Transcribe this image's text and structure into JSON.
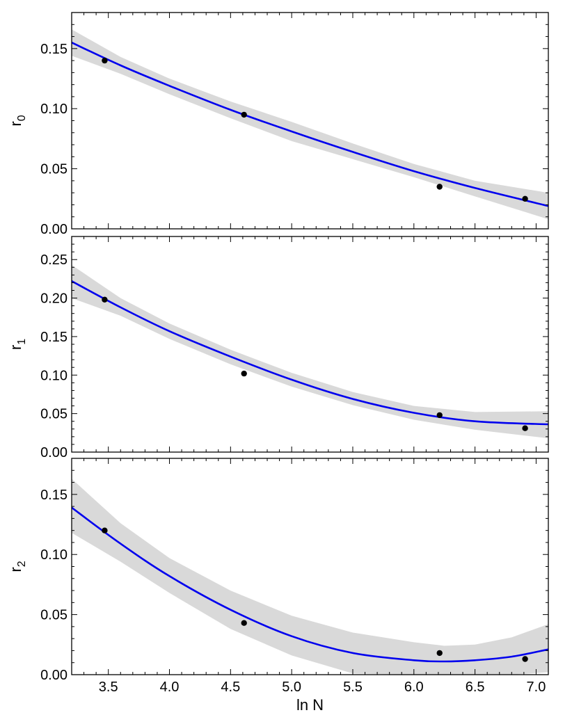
{
  "chart_data": [
    {
      "type": "scatter",
      "ylabel": "r",
      "ylabel_sub": "0",
      "xlim": [
        3.2,
        7.1
      ],
      "ylim": [
        0.0,
        0.18
      ],
      "yticks": [
        "0.00",
        "0.05",
        "0.10",
        "0.15"
      ],
      "points": {
        "x": [
          3.47,
          4.61,
          6.21,
          6.91
        ],
        "y": [
          0.14,
          0.095,
          0.035,
          0.025
        ]
      },
      "fit": {
        "x": [
          3.2,
          3.6,
          4.0,
          4.5,
          5.0,
          5.5,
          6.0,
          6.5,
          7.1
        ],
        "y": [
          0.155,
          0.136,
          0.119,
          0.099,
          0.081,
          0.064,
          0.048,
          0.034,
          0.019
        ],
        "color": "#0000ee"
      },
      "band": {
        "x": [
          3.2,
          3.6,
          4.0,
          4.5,
          5.0,
          5.5,
          6.0,
          6.5,
          7.1
        ],
        "lower": [
          0.144,
          0.129,
          0.112,
          0.092,
          0.073,
          0.058,
          0.043,
          0.027,
          0.008
        ],
        "upper": [
          0.166,
          0.143,
          0.125,
          0.106,
          0.089,
          0.071,
          0.054,
          0.04,
          0.03
        ],
        "color": "#d9d9d9"
      }
    },
    {
      "type": "scatter",
      "ylabel": "r",
      "ylabel_sub": "1",
      "xlim": [
        3.2,
        7.1
      ],
      "ylim": [
        0.0,
        0.28
      ],
      "yticks": [
        "0.00",
        "0.05",
        "0.10",
        "0.15",
        "0.20",
        "0.25"
      ],
      "points": {
        "x": [
          3.47,
          4.61,
          6.21,
          6.91
        ],
        "y": [
          0.198,
          0.102,
          0.048,
          0.031
        ]
      },
      "fit": {
        "x": [
          3.2,
          3.6,
          4.0,
          4.5,
          5.0,
          5.5,
          6.0,
          6.5,
          7.1
        ],
        "y": [
          0.222,
          0.188,
          0.157,
          0.124,
          0.094,
          0.069,
          0.051,
          0.04,
          0.036
        ],
        "color": "#0000ee"
      },
      "band": {
        "x": [
          3.2,
          3.6,
          4.0,
          4.5,
          5.0,
          5.5,
          6.0,
          6.5,
          7.1
        ],
        "lower": [
          0.2,
          0.177,
          0.147,
          0.114,
          0.085,
          0.061,
          0.042,
          0.029,
          0.018
        ],
        "upper": [
          0.243,
          0.2,
          0.167,
          0.133,
          0.103,
          0.078,
          0.06,
          0.052,
          0.053
        ],
        "color": "#d9d9d9"
      }
    },
    {
      "type": "scatter",
      "ylabel": "r",
      "ylabel_sub": "2",
      "xlabel": "ln N",
      "xlim": [
        3.2,
        7.1
      ],
      "ylim": [
        0.0,
        0.18
      ],
      "yticks": [
        "0.00",
        "0.05",
        "0.10",
        "0.15"
      ],
      "xticks": [
        "3.5",
        "4.0",
        "4.5",
        "5.0",
        "5.5",
        "6.0",
        "6.5",
        "7.0"
      ],
      "points": {
        "x": [
          3.47,
          4.61,
          6.21,
          6.91
        ],
        "y": [
          0.12,
          0.043,
          0.018,
          0.013
        ]
      },
      "fit": {
        "x": [
          3.2,
          3.6,
          4.0,
          4.5,
          5.0,
          5.5,
          6.0,
          6.25,
          6.5,
          6.8,
          7.1
        ],
        "y": [
          0.139,
          0.109,
          0.082,
          0.054,
          0.032,
          0.018,
          0.012,
          0.011,
          0.012,
          0.015,
          0.021
        ],
        "color": "#0000ee"
      },
      "band": {
        "x": [
          3.2,
          3.6,
          4.0,
          4.5,
          5.0,
          5.5,
          6.0,
          6.25,
          6.5,
          6.8,
          7.1
        ],
        "lower": [
          0.118,
          0.094,
          0.068,
          0.038,
          0.016,
          0.001,
          0.0,
          0.0,
          0.0,
          0.0,
          0.002
        ],
        "upper": [
          0.163,
          0.126,
          0.097,
          0.07,
          0.049,
          0.035,
          0.027,
          0.024,
          0.025,
          0.031,
          0.042
        ],
        "color": "#d9d9d9"
      }
    }
  ]
}
